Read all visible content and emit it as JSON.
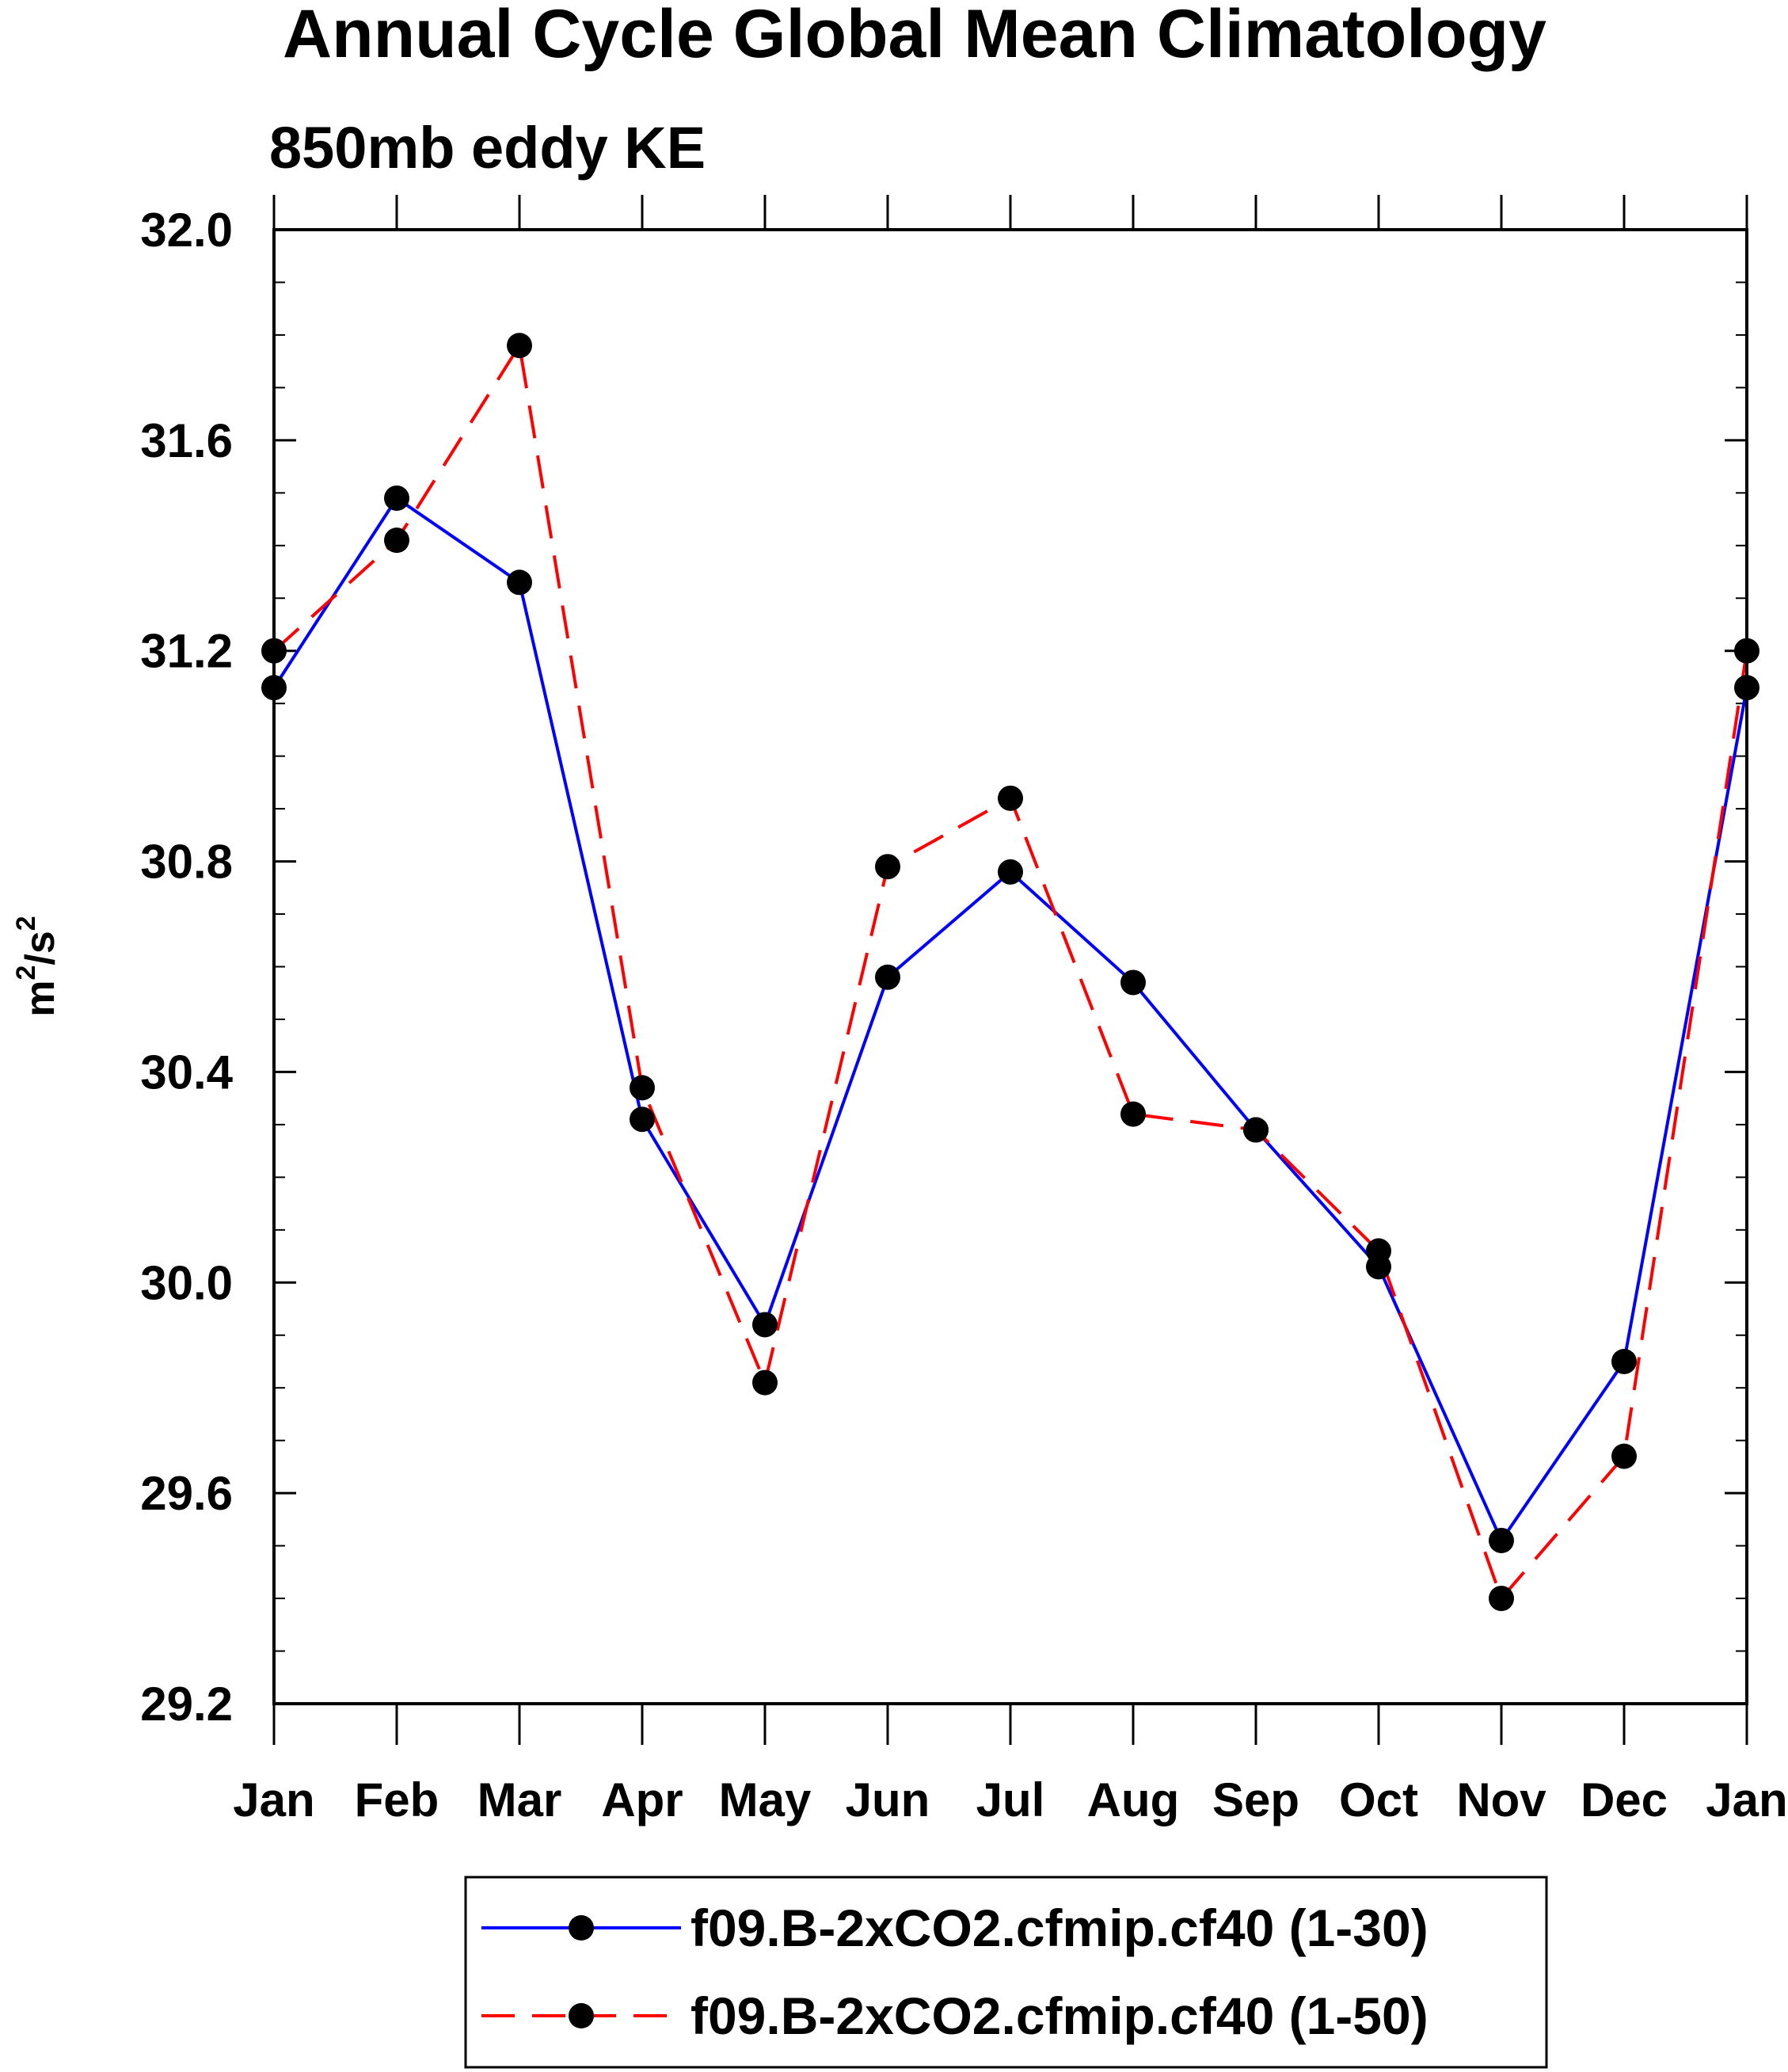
{
  "chart_data": {
    "type": "line",
    "title": "Annual Cycle Global Mean Climatology",
    "subtitle": "850mb eddy KE",
    "ylabel": {
      "base1": "m",
      "sup1": "2",
      "sep": "/",
      "base2": "s",
      "sup2": "2"
    },
    "xlabel": "",
    "categories": [
      "Jan",
      "Feb",
      "Mar",
      "Apr",
      "May",
      "Jun",
      "Jul",
      "Aug",
      "Sep",
      "Oct",
      "Nov",
      "Dec",
      "Jan"
    ],
    "ylim": [
      29.2,
      32.0
    ],
    "yticks": [
      "29.2",
      "29.6",
      "30.0",
      "30.4",
      "30.8",
      "31.2",
      "31.6",
      "32.0"
    ],
    "series": [
      {
        "name": "f09.B-2xCO2.cfmip.cf40 (1-30)",
        "color": "#0000ff",
        "dash": "solid",
        "values": [
          31.13,
          31.49,
          31.33,
          30.31,
          29.92,
          30.58,
          30.78,
          30.57,
          30.29,
          30.03,
          29.51,
          29.85,
          31.13
        ]
      },
      {
        "name": "f09.B-2xCO2.cfmip.cf40 (1-50)",
        "color": "#ff0000",
        "dash": "dashed",
        "values": [
          31.2,
          31.41,
          31.78,
          30.37,
          29.81,
          30.79,
          30.92,
          30.32,
          30.29,
          30.06,
          29.4,
          29.67,
          31.2
        ]
      }
    ],
    "marker_color": "#000000",
    "legend_position": "bottom-center"
  }
}
